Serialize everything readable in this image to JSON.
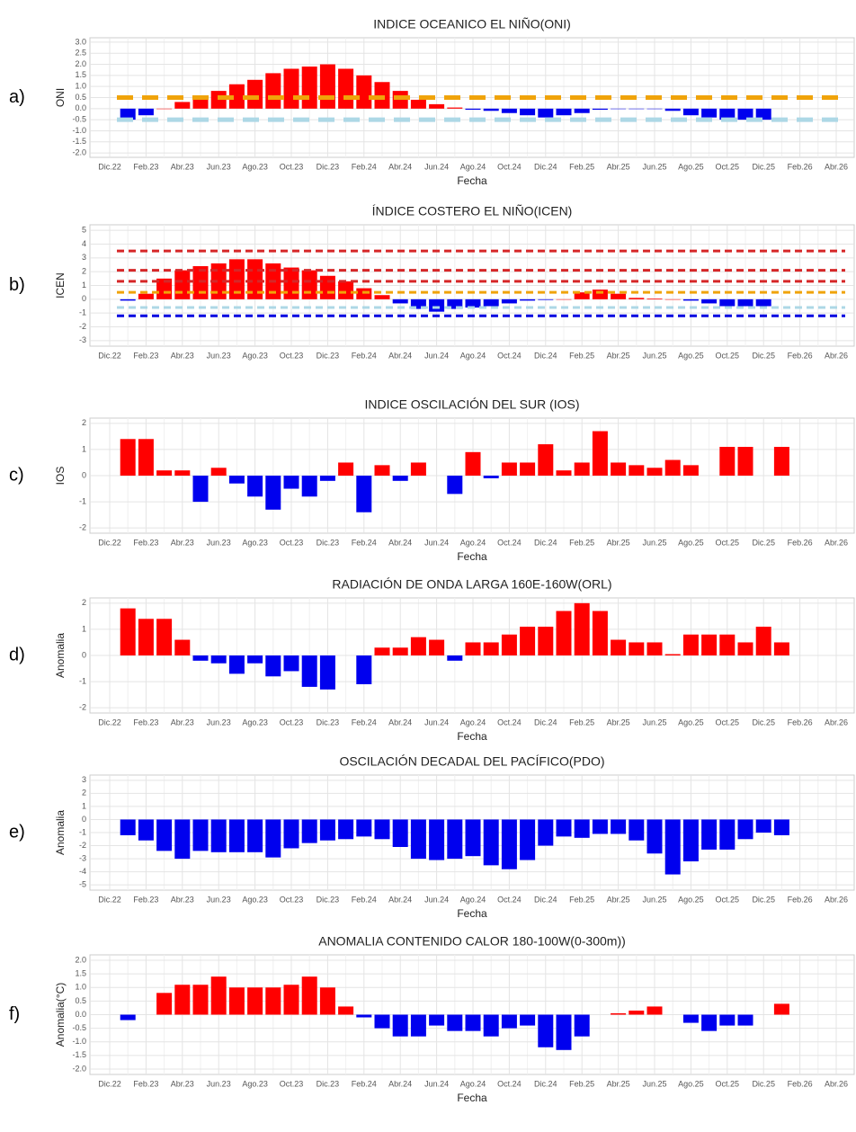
{
  "chart_data": [
    {
      "type": "bar",
      "panel_label": "a)",
      "title": "INDICE OCEANICO EL NIÑO(ONI)",
      "y_label": "ONI",
      "x_label": "Fecha",
      "categories": [
        "Dic.22",
        null,
        "Feb.23",
        null,
        "Abr.23",
        null,
        "Jun.23",
        null,
        "Ago.23",
        null,
        "Oct.23",
        null,
        "Dic.23",
        null,
        "Feb.24",
        null,
        "Abr.24",
        null,
        "Jun.24",
        null,
        "Ago.24",
        null,
        "Oct.24",
        null,
        "Dic.24",
        null,
        "Feb.25",
        null,
        "Abr.25",
        null,
        "Jun.25",
        null,
        "Ago.25",
        null,
        "Oct.25",
        null,
        "Dic.25",
        null,
        "Feb.26",
        null,
        "Abr.26"
      ],
      "values": [
        null,
        -0.5,
        -0.3,
        0.0,
        0.3,
        0.5,
        0.8,
        1.1,
        1.3,
        1.6,
        1.8,
        1.9,
        2.0,
        1.8,
        1.5,
        1.2,
        0.8,
        0.4,
        0.2,
        0.05,
        -0.05,
        -0.1,
        -0.2,
        -0.3,
        -0.4,
        -0.3,
        -0.2,
        -0.05,
        -0.02,
        -0.02,
        -0.02,
        -0.1,
        -0.3,
        -0.4,
        -0.5,
        -0.5,
        -0.5,
        null,
        null,
        null,
        null
      ],
      "positive_color": "#ff0000",
      "negative_color": "#0000ee",
      "reference_lines": [
        {
          "value": 0.5,
          "color": "#f0a30a"
        },
        {
          "value": -0.5,
          "color": "#add8e6"
        }
      ],
      "ylim": [
        -2.2,
        3.2
      ],
      "yticks": [
        {
          "value": -2,
          "label": "-2.0"
        },
        -1.5,
        {
          "value": -1,
          "label": "-1.0"
        },
        -0.5,
        {
          "value": 0,
          "label": "0.0"
        },
        0.5,
        {
          "value": 1,
          "label": "1.0"
        },
        1.5,
        {
          "value": 2,
          "label": "2.0"
        },
        2.5,
        {
          "value": 3,
          "label": "3.0"
        }
      ],
      "grid": true
    },
    {
      "type": "bar",
      "panel_label": "b)",
      "title": "ÍNDICE COSTERO EL NIÑO(ICEN)",
      "y_label": "ICEN",
      "categories": [
        "Dic.22",
        null,
        "Feb.23",
        null,
        "Abr.23",
        null,
        "Jun.23",
        null,
        "Ago.23",
        null,
        "Oct.23",
        null,
        "Dic.23",
        null,
        "Feb.24",
        null,
        "Abr.24",
        null,
        "Jun.24",
        null,
        "Ago.24",
        null,
        "Oct.24",
        null,
        "Dic.24",
        null,
        "Feb.25",
        null,
        "Abr.25",
        null,
        "Jun.25",
        null,
        "Ago.25",
        null,
        "Oct.25",
        null,
        "Dic.25",
        null,
        "Feb.26",
        null,
        "Abr.26"
      ],
      "values": [
        null,
        -0.1,
        0.4,
        1.5,
        2.1,
        2.4,
        2.6,
        2.9,
        2.9,
        2.6,
        2.3,
        2.1,
        1.7,
        1.3,
        0.8,
        0.3,
        -0.3,
        -0.7,
        -0.9,
        -0.7,
        -0.6,
        -0.5,
        -0.3,
        -0.1,
        -0.05,
        0.0,
        0.5,
        0.7,
        0.4,
        0.1,
        0.05,
        0.0,
        -0.1,
        -0.3,
        -0.5,
        -0.5,
        -0.5,
        null,
        null,
        null,
        null
      ],
      "positive_color": "#ff0000",
      "negative_color": "#0000ee",
      "reference_lines": [
        {
          "value": 3.5,
          "color": "#d62728"
        },
        {
          "value": 2.1,
          "color": "#d62728"
        },
        {
          "value": 1.3,
          "color": "#d62728"
        },
        {
          "value": 0.5,
          "color": "#f0a30a"
        },
        {
          "value": -0.6,
          "color": "#add8e6"
        },
        {
          "value": -1.2,
          "color": "#0000e0"
        }
      ],
      "ylim": [
        -3.4,
        5.4
      ],
      "yticks": [
        -3,
        -2,
        -1,
        0,
        1,
        2,
        3,
        4,
        5
      ],
      "grid": true
    },
    {
      "type": "bar",
      "panel_label": "c)",
      "title": "INDICE OSCILACIÓN DEL SUR (IOS)",
      "y_label": "IOS",
      "x_label": "Fecha",
      "categories": [
        "Dic.22",
        null,
        "Feb.23",
        null,
        "Abr.23",
        null,
        "Jun.23",
        null,
        "Ago.23",
        null,
        "Oct.23",
        null,
        "Dic.23",
        null,
        "Feb.24",
        null,
        "Abr.24",
        null,
        "Jun.24",
        null,
        "Ago.24",
        null,
        "Oct.24",
        null,
        "Dic.24",
        null,
        "Feb.25",
        null,
        "Abr.25",
        null,
        "Jun.25",
        null,
        "Ago.25",
        null,
        "Oct.25",
        null,
        "Dic.25",
        null,
        "Feb.26",
        null,
        "Abr.26"
      ],
      "values": [
        null,
        1.4,
        1.4,
        0.2,
        0.2,
        -1.0,
        0.3,
        -0.3,
        -0.8,
        -1.3,
        -0.5,
        -0.8,
        -0.2,
        0.5,
        -1.4,
        0.4,
        -0.2,
        0.5,
        null,
        -0.7,
        0.9,
        -0.1,
        0.5,
        0.5,
        1.2,
        0.2,
        0.5,
        1.7,
        0.5,
        0.4,
        0.3,
        0.6,
        0.4,
        null,
        1.1,
        1.1,
        null,
        1.1,
        null,
        null,
        null
      ],
      "positive_color": "#ff0000",
      "negative_color": "#0000ee",
      "ylim": [
        -2.2,
        2.2
      ],
      "yticks": [
        -2,
        -1,
        0,
        1,
        2
      ],
      "grid": true
    },
    {
      "type": "bar",
      "panel_label": "d)",
      "title": "RADIACIÓN DE ONDA LARGA 160E-160W(ORL)",
      "y_label": "Anomalia",
      "x_label": "Fecha",
      "categories": [
        "Dic.22",
        null,
        "Feb.23",
        null,
        "Abr.23",
        null,
        "Jun.23",
        null,
        "Ago.23",
        null,
        "Oct.23",
        null,
        "Dic.23",
        null,
        "Feb.24",
        null,
        "Abr.24",
        null,
        "Jun.24",
        null,
        "Ago.24",
        null,
        "Oct.24",
        null,
        "Dic.24",
        null,
        "Feb.25",
        null,
        "Abr.25",
        null,
        "Jun.25",
        null,
        "Ago.25",
        null,
        "Oct.25",
        null,
        "Dic.25",
        null,
        "Feb.26",
        null,
        "Abr.26"
      ],
      "values": [
        null,
        1.8,
        1.4,
        1.4,
        0.6,
        -0.2,
        -0.3,
        -0.7,
        -0.3,
        -0.8,
        -0.6,
        -1.2,
        -1.3,
        null,
        -1.1,
        0.3,
        0.3,
        0.7,
        0.6,
        -0.2,
        0.5,
        0.5,
        0.8,
        1.1,
        1.1,
        1.7,
        2.0,
        1.7,
        0.6,
        0.5,
        0.5,
        0.05,
        0.8,
        0.8,
        0.8,
        0.5,
        1.1,
        0.5,
        null,
        null,
        null
      ],
      "positive_color": "#ff0000",
      "negative_color": "#0000ee",
      "ylim": [
        -2.2,
        2.2
      ],
      "yticks": [
        -2,
        -1,
        0,
        1,
        2
      ],
      "grid": true
    },
    {
      "type": "bar",
      "panel_label": "e)",
      "title": "OSCILACIÓN DECADAL DEL PACÍFICO(PDO)",
      "y_label": "Anomalia",
      "x_label": "Fecha",
      "categories": [
        "Dic.22",
        null,
        "Feb.23",
        null,
        "Abr.23",
        null,
        "Jun.23",
        null,
        "Ago.23",
        null,
        "Oct.23",
        null,
        "Dic.23",
        null,
        "Feb.24",
        null,
        "Abr.24",
        null,
        "Jun.24",
        null,
        "Ago.24",
        null,
        "Oct.24",
        null,
        "Dic.24",
        null,
        "Feb.25",
        null,
        "Abr.25",
        null,
        "Jun.25",
        null,
        "Ago.25",
        null,
        "Oct.25",
        null,
        "Dic.25",
        null,
        "Feb.26",
        null,
        "Abr.26"
      ],
      "values": [
        null,
        -1.2,
        -1.6,
        -2.4,
        -3.0,
        -2.4,
        -2.5,
        -2.5,
        -2.5,
        -2.9,
        -2.2,
        -1.8,
        -1.6,
        -1.5,
        -1.3,
        -1.5,
        -2.1,
        -3.0,
        -3.1,
        -3.0,
        -2.8,
        -3.5,
        -3.8,
        -3.1,
        -2.0,
        -1.3,
        -1.4,
        -1.1,
        -1.1,
        -1.6,
        -2.6,
        -4.2,
        -3.2,
        -2.3,
        -2.3,
        -1.5,
        -1.0,
        -1.2,
        null,
        null,
        null
      ],
      "positive_color": "#ff0000",
      "negative_color": "#0000ee",
      "ylim": [
        -5.4,
        3.4
      ],
      "yticks": [
        -5,
        -4,
        -3,
        -2,
        -1,
        0,
        1,
        2,
        3
      ],
      "grid": true
    },
    {
      "type": "bar",
      "panel_label": "f)",
      "title": "ANOMALIA CONTENIDO CALOR 180-100W(0-300m))",
      "y_label": "Anomalia(°C)",
      "x_label": "Fecha",
      "categories": [
        "Dic.22",
        null,
        "Feb.23",
        null,
        "Abr.23",
        null,
        "Jun.23",
        null,
        "Ago.23",
        null,
        "Oct.23",
        null,
        "Dic.23",
        null,
        "Feb.24",
        null,
        "Abr.24",
        null,
        "Jun.24",
        null,
        "Ago.24",
        null,
        "Oct.24",
        null,
        "Dic.24",
        null,
        "Feb.25",
        null,
        "Abr.25",
        null,
        "Jun.25",
        null,
        "Ago.25",
        null,
        "Oct.25",
        null,
        "Dic.25",
        null,
        "Feb.26",
        null,
        "Abr.26"
      ],
      "values": [
        null,
        -0.2,
        null,
        0.8,
        1.1,
        1.1,
        1.4,
        1.0,
        1.0,
        1.0,
        1.1,
        1.4,
        1.0,
        0.3,
        -0.1,
        -0.5,
        -0.8,
        -0.8,
        -0.4,
        -0.6,
        -0.6,
        -0.8,
        -0.5,
        -0.4,
        -1.2,
        -1.3,
        -0.8,
        null,
        0.05,
        0.15,
        0.3,
        null,
        -0.3,
        -0.6,
        -0.4,
        -0.4,
        null,
        0.4,
        null,
        null,
        null
      ],
      "positive_color": "#ff0000",
      "negative_color": "#0000ee",
      "ylim": [
        -2.2,
        2.2
      ],
      "yticks": [
        {
          "value": -2,
          "label": "-2.0"
        },
        -1.5,
        {
          "value": -1,
          "label": "-1.0"
        },
        -0.5,
        {
          "value": 0,
          "label": "0.0"
        },
        0.5,
        {
          "value": 1,
          "label": "1.0"
        },
        1.5,
        {
          "value": 2,
          "label": "2.0"
        }
      ],
      "grid": true
    }
  ]
}
